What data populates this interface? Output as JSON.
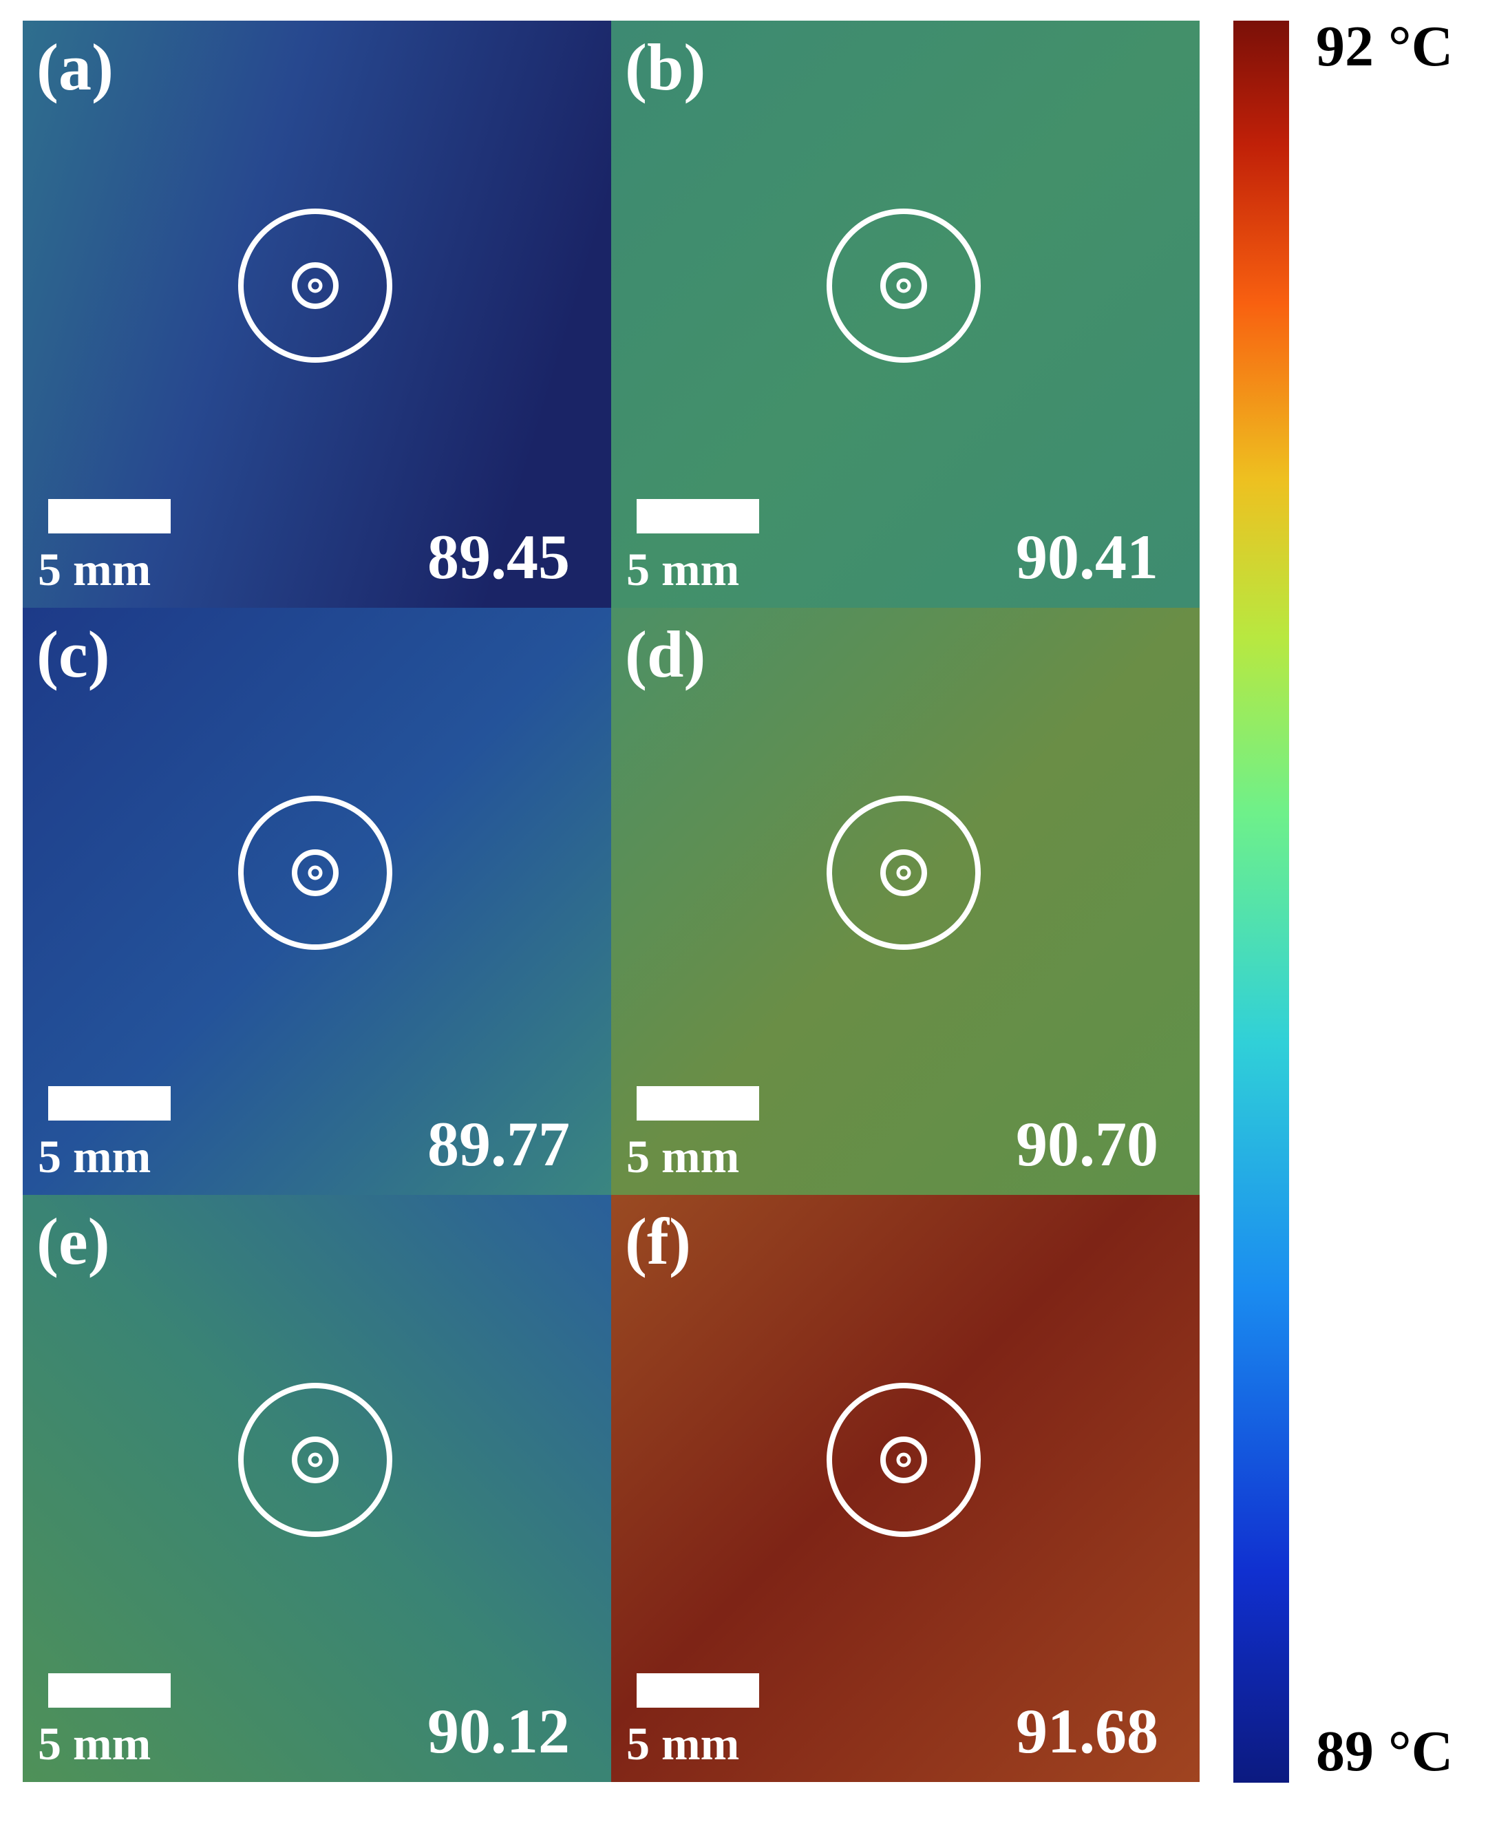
{
  "panels": [
    {
      "label": "(a)",
      "value": "89.45",
      "scale_bar": "5 mm"
    },
    {
      "label": "(b)",
      "value": "90.41",
      "scale_bar": "5 mm"
    },
    {
      "label": "(c)",
      "value": "89.77",
      "scale_bar": "5 mm"
    },
    {
      "label": "(d)",
      "value": "90.70",
      "scale_bar": "5 mm"
    },
    {
      "label": "(e)",
      "value": "90.12",
      "scale_bar": "5 mm"
    },
    {
      "label": "(f)",
      "value": "91.68",
      "scale_bar": "5 mm"
    }
  ],
  "colorbar": {
    "max_label": "92 °C",
    "min_label": "89 °C"
  }
}
